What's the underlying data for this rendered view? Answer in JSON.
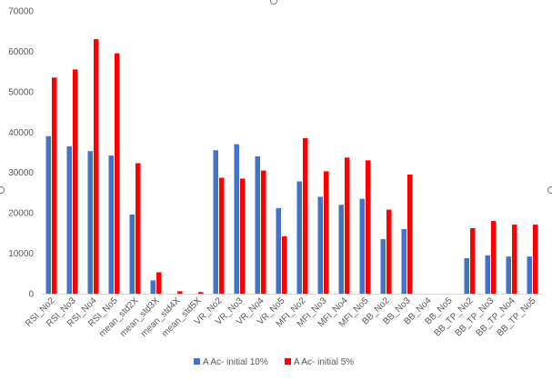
{
  "chart_data": {
    "type": "bar",
    "categories": [
      "RSI_No2",
      "RSI_No3",
      "RSI_No4",
      "RSI_No5",
      "mean_std2X",
      "mean_std3X",
      "mean_std4X",
      "mean_std5X",
      "VR_No2",
      "VR_No3",
      "VR_No4",
      "VR_No5",
      "MFI_No2",
      "MFI_No3",
      "MFI_No4",
      "MFI_No5",
      "BB_No2",
      "BB_No3",
      "BB_No4",
      "BB_No5",
      "BB_TP_No2",
      "BB_TP_No3",
      "BB_TP_No4",
      "BB_TP_No5"
    ],
    "series": [
      {
        "name": "A Ac- initial 10%",
        "color": "#4472C4",
        "values": [
          39000,
          36500,
          35300,
          34200,
          19600,
          3300,
          0,
          0,
          35500,
          37000,
          34000,
          21200,
          27800,
          24000,
          22000,
          23500,
          13500,
          16000,
          0,
          0,
          8800,
          9500,
          9200,
          9200
        ]
      },
      {
        "name": "A Ac- initial 5%",
        "color": "#FF0000",
        "values": [
          53500,
          55500,
          63000,
          59500,
          32300,
          5300,
          600,
          400,
          28700,
          28500,
          30500,
          14200,
          38500,
          30300,
          33700,
          33000,
          20800,
          29500,
          0,
          0,
          16200,
          18000,
          17100,
          17100
        ]
      }
    ],
    "ylim": [
      0,
      70000
    ],
    "yticks": [
      "0",
      "10000",
      "20000",
      "30000",
      "40000",
      "50000",
      "60000",
      "70000"
    ],
    "grid": false,
    "legend_position": "bottom"
  }
}
